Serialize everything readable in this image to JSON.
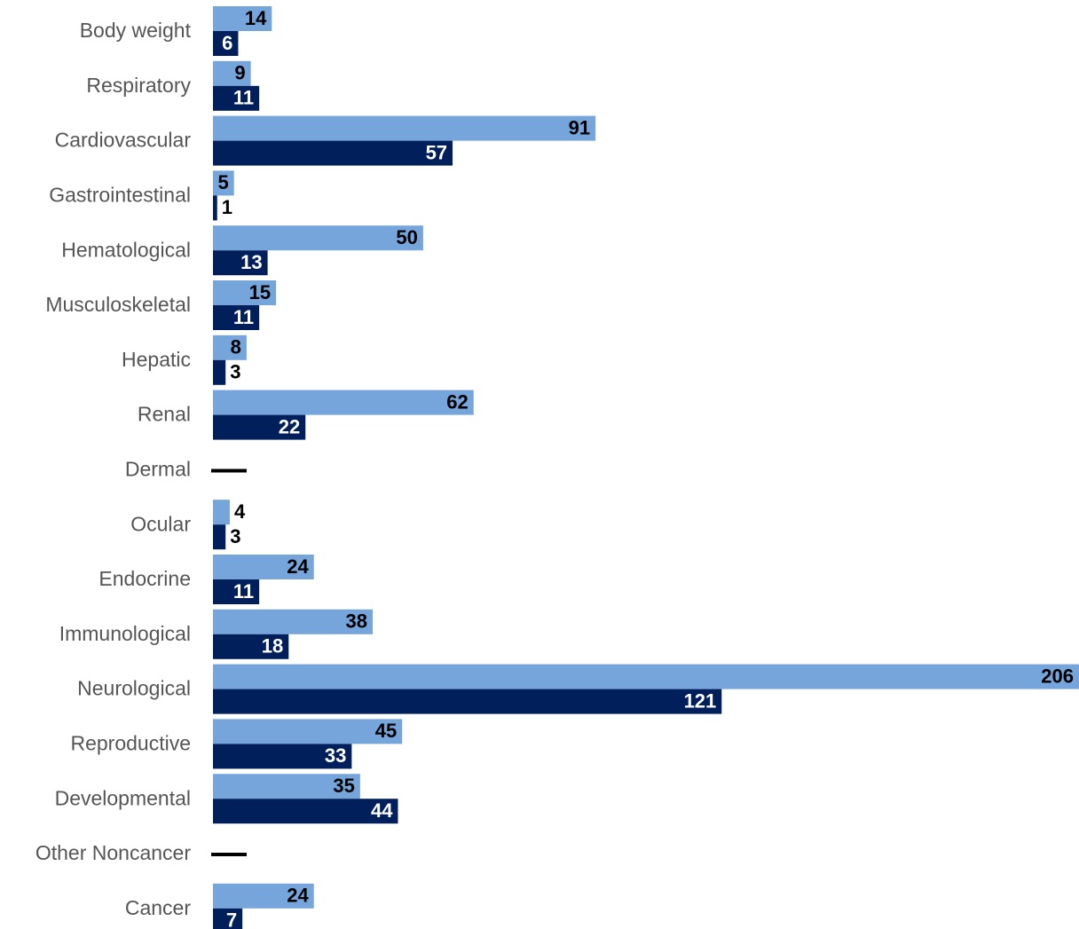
{
  "chart_data": {
    "type": "bar",
    "orientation": "horizontal",
    "categories": [
      "Body weight",
      "Respiratory",
      "Cardiovascular",
      "Gastrointestinal",
      "Hematological",
      "Musculoskeletal",
      "Hepatic",
      "Renal",
      "Dermal",
      "Ocular",
      "Endocrine",
      "Immunological",
      "Neurological",
      "Reproductive",
      "Developmental",
      "Other Noncancer",
      "Cancer"
    ],
    "series": [
      {
        "color": "#76a5dc",
        "values": [
          14,
          9,
          91,
          5,
          50,
          15,
          8,
          62,
          null,
          4,
          24,
          38,
          206,
          45,
          35,
          null,
          24
        ]
      },
      {
        "color": "#001f5b",
        "values": [
          6,
          11,
          57,
          1,
          13,
          11,
          3,
          22,
          null,
          3,
          11,
          18,
          121,
          33,
          44,
          null,
          7
        ]
      }
    ],
    "missing_marker": "—",
    "title": "",
    "xlabel": "",
    "ylabel": "",
    "grid": false,
    "legend": "none"
  }
}
